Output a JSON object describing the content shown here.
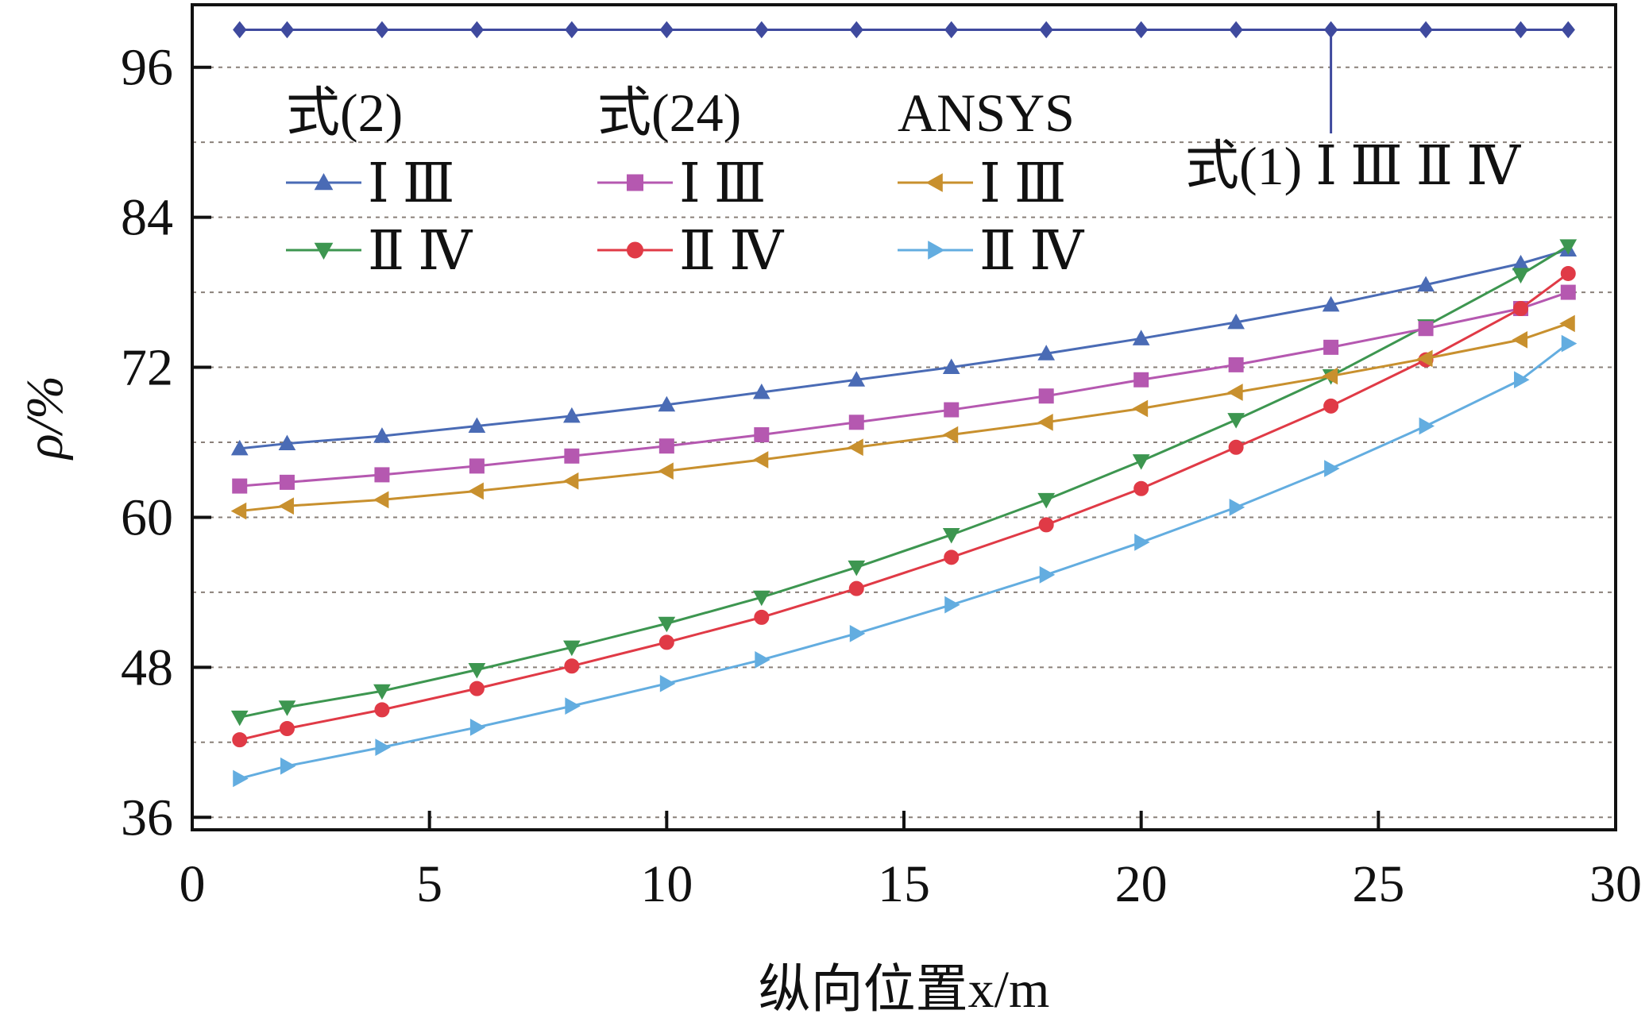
{
  "chart_data": {
    "type": "line",
    "xlabel": "纵向位置x/m",
    "ylabel": "ρ/%",
    "xlim": [
      0,
      30
    ],
    "ylim": [
      35,
      101
    ],
    "xticks": [
      0,
      5,
      10,
      15,
      20,
      25,
      30
    ],
    "yticks": [
      36,
      48,
      60,
      72,
      84,
      96
    ],
    "grid": "horizontal dotted",
    "x": [
      1,
      2,
      4,
      6,
      8,
      10,
      12,
      14,
      16,
      18,
      20,
      22,
      24,
      26,
      28,
      29
    ],
    "series": [
      {
        "name": "式(1) Ⅰ Ⅲ Ⅱ Ⅳ",
        "color": "#3f4a9e",
        "marker": "diamond",
        "values": [
          99,
          99,
          99,
          99,
          99,
          99,
          99,
          99,
          99,
          99,
          99,
          99,
          99,
          99,
          99,
          99
        ]
      },
      {
        "name": "式(2) Ⅰ Ⅲ",
        "color": "#4a6bb5",
        "marker": "triangle-up",
        "values": [
          65.5,
          65.9,
          66.5,
          67.3,
          68.1,
          69,
          70,
          71,
          72,
          73.1,
          74.3,
          75.6,
          77,
          78.6,
          80.3,
          81.4
        ]
      },
      {
        "name": "式(2) Ⅱ Ⅳ",
        "color": "#3d9650",
        "marker": "triangle-down",
        "values": [
          44,
          44.8,
          46.1,
          47.8,
          49.6,
          51.5,
          53.6,
          56,
          58.6,
          61.4,
          64.5,
          67.8,
          71.3,
          75.3,
          79.4,
          81.7
        ]
      },
      {
        "name": "式(24) Ⅰ Ⅲ",
        "color": "#b558b0",
        "marker": "square",
        "values": [
          62.5,
          62.8,
          63.4,
          64.1,
          64.9,
          65.7,
          66.6,
          67.6,
          68.6,
          69.7,
          71,
          72.2,
          73.6,
          75.1,
          76.7,
          78
        ]
      },
      {
        "name": "式(24) Ⅱ Ⅳ",
        "color": "#e03a46",
        "marker": "circle",
        "values": [
          42.2,
          43.1,
          44.6,
          46.3,
          48.1,
          50,
          52,
          54.3,
          56.8,
          59.4,
          62.3,
          65.6,
          68.9,
          72.6,
          76.7,
          79.5
        ]
      },
      {
        "name": "ANSYS Ⅰ Ⅲ",
        "color": "#c8902e",
        "marker": "triangle-left",
        "values": [
          60.5,
          60.9,
          61.4,
          62.1,
          62.9,
          63.7,
          64.6,
          65.6,
          66.6,
          67.6,
          68.7,
          70,
          71.3,
          72.7,
          74.2,
          75.5
        ]
      },
      {
        "name": "ANSYS Ⅱ Ⅳ",
        "color": "#63ade0",
        "marker": "triangle-right",
        "values": [
          39.1,
          40.1,
          41.6,
          43.2,
          44.9,
          46.7,
          48.6,
          50.7,
          53,
          55.4,
          58,
          60.8,
          63.9,
          67.3,
          71,
          73.9
        ]
      }
    ],
    "legend": {
      "groups": [
        {
          "header": "式(2)",
          "items": [
            {
              "label": "Ⅰ Ⅲ",
              "series": 1
            },
            {
              "label": "Ⅱ Ⅳ",
              "series": 2
            }
          ]
        },
        {
          "header": "式(24)",
          "items": [
            {
              "label": "Ⅰ Ⅲ",
              "series": 3
            },
            {
              "label": "Ⅱ Ⅳ",
              "series": 4
            }
          ]
        },
        {
          "header": "ANSYS",
          "items": [
            {
              "label": "Ⅰ Ⅲ",
              "series": 5
            },
            {
              "label": "Ⅱ Ⅳ",
              "series": 6
            }
          ]
        }
      ],
      "annotation": "式(1) Ⅰ Ⅲ Ⅱ Ⅳ",
      "annotation_x": 24
    }
  }
}
